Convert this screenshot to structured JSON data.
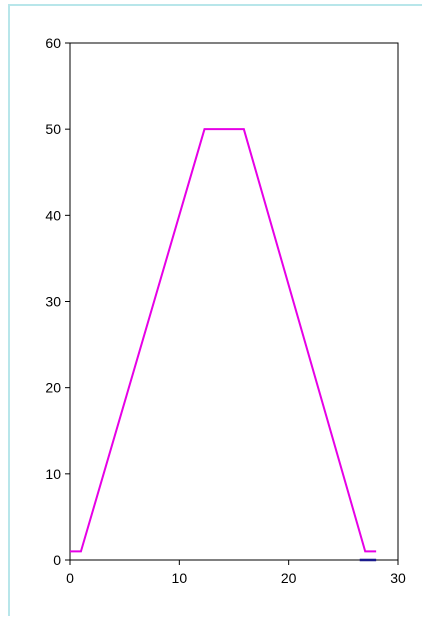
{
  "chart_data": {
    "type": "line",
    "title": "",
    "xlabel": "",
    "ylabel": "",
    "xlim": [
      0,
      30
    ],
    "ylim": [
      0,
      60
    ],
    "x_ticks": [
      "0",
      "10",
      "20",
      "30"
    ],
    "y_ticks": [
      "0",
      "10",
      "20",
      "30",
      "40",
      "50",
      "60"
    ],
    "grid": false,
    "legend": "none",
    "series": [
      {
        "color": "#e600e6",
        "points": [
          [
            0,
            1
          ],
          [
            1,
            1
          ],
          [
            12.3,
            50
          ],
          [
            15.9,
            50
          ],
          [
            27,
            1
          ],
          [
            28,
            1
          ]
        ]
      },
      {
        "color": "#1a1a8c",
        "points": [
          [
            26.5,
            0
          ],
          [
            28,
            0
          ]
        ]
      }
    ]
  }
}
